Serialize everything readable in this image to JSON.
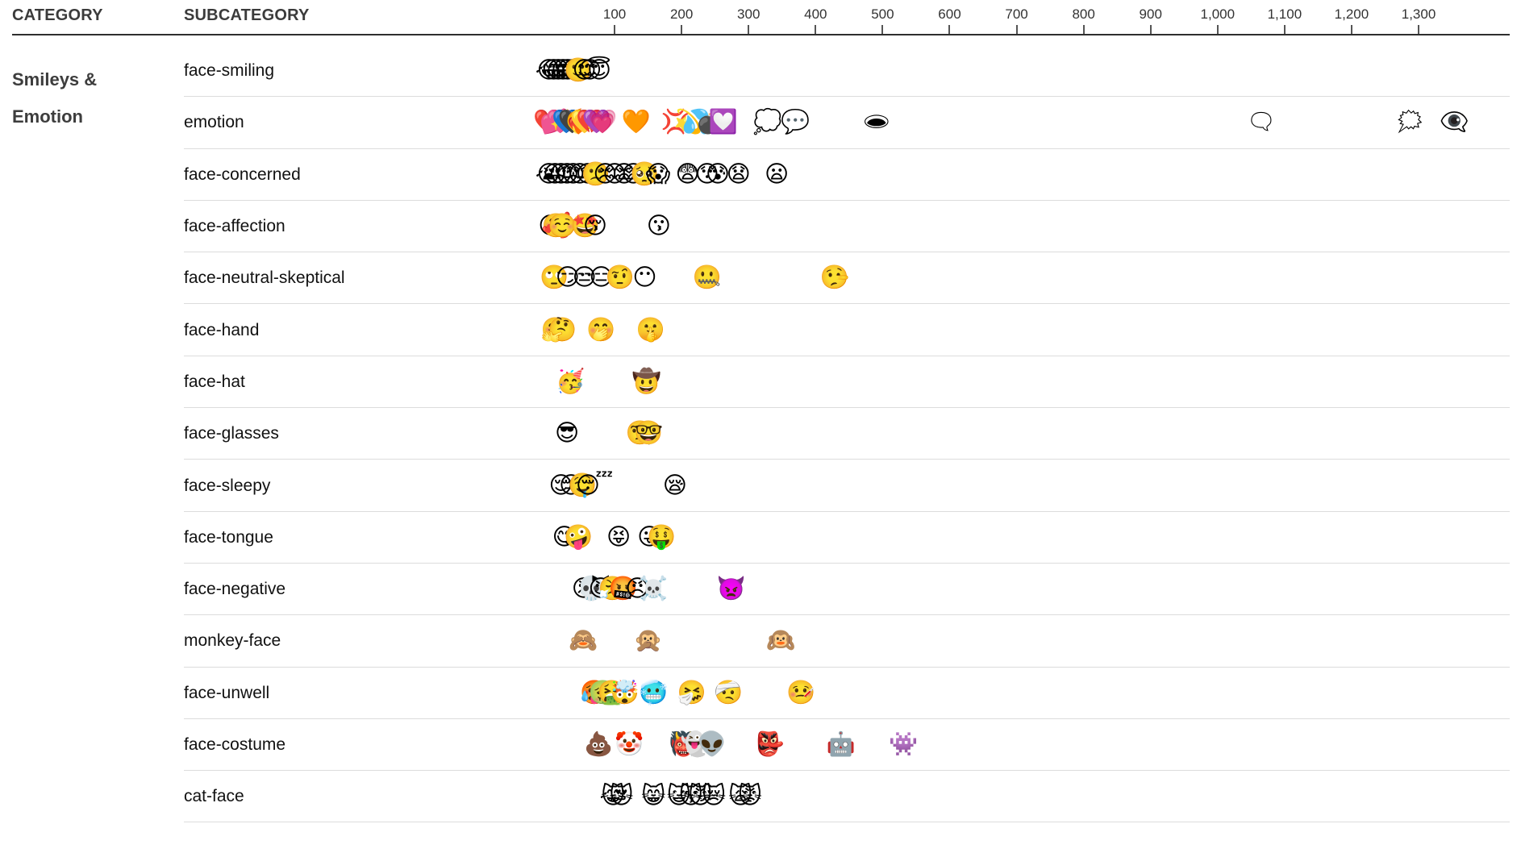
{
  "header": {
    "category_label": "CATEGORY",
    "subcategory_label": "SUBCATEGORY"
  },
  "category": {
    "line1": "Smileys &",
    "line2": "Emotion"
  },
  "colors": {
    "axis_line": "#2e2e2e",
    "row_separator": "#dcdcdc",
    "header_text": "#3b3b3b",
    "label_text": "#111111",
    "background": "#ffffff"
  },
  "chart_data": {
    "type": "scatter",
    "title": "",
    "xlabel": "",
    "ylabel": "",
    "x_axis": {
      "min": 0,
      "max": 1400,
      "ticks": [
        100,
        200,
        300,
        400,
        500,
        600,
        700,
        800,
        900,
        1000,
        1100,
        1200,
        1300
      ],
      "tick_labels": [
        "100",
        "200",
        "300",
        "400",
        "500",
        "600",
        "700",
        "800",
        "900",
        "1,000",
        "1,100",
        "1,200",
        "1,300"
      ],
      "grid": false
    },
    "category": "Smileys & Emotion",
    "rows": [
      {
        "subcategory": "face-smiling",
        "points": [
          {
            "emoji": "😂",
            "value": 2
          },
          {
            "emoji": "😃",
            "value": 9
          },
          {
            "emoji": "😄",
            "value": 16
          },
          {
            "emoji": "😁",
            "value": 23
          },
          {
            "emoji": "😆",
            "value": 30
          },
          {
            "emoji": "😅",
            "value": 38
          },
          {
            "emoji": "🙂",
            "value": 46
          },
          {
            "emoji": "😊",
            "value": 55
          },
          {
            "emoji": "😉",
            "value": 63
          },
          {
            "emoji": "😇",
            "value": 77
          }
        ]
      },
      {
        "subcategory": "emotion",
        "points": [
          {
            "emoji": "❤️",
            "value": 0
          },
          {
            "emoji": "💕",
            "value": 10
          },
          {
            "emoji": "💖",
            "value": 19
          },
          {
            "emoji": "💙",
            "value": 28
          },
          {
            "emoji": "🖤",
            "value": 37
          },
          {
            "emoji": "❤️‍🔥",
            "value": 46
          },
          {
            "emoji": "💛",
            "value": 55
          },
          {
            "emoji": "💔",
            "value": 64
          },
          {
            "emoji": "💜",
            "value": 73
          },
          {
            "emoji": "💗",
            "value": 82
          },
          {
            "emoji": "🧡",
            "value": 132
          },
          {
            "emoji": "💢",
            "value": 191
          },
          {
            "emoji": "💫",
            "value": 210
          },
          {
            "emoji": "💦",
            "value": 222
          },
          {
            "emoji": "💣",
            "value": 242
          },
          {
            "emoji": "💟",
            "value": 262
          },
          {
            "emoji": "💭",
            "value": 328
          },
          {
            "emoji": "💬",
            "value": 370
          },
          {
            "emoji": "🕳",
            "value": 491
          },
          {
            "emoji": "🗨",
            "value": 1065
          },
          {
            "emoji": "🗯",
            "value": 1287
          },
          {
            "emoji": "👁️‍🗨️",
            "value": 1353
          }
        ]
      },
      {
        "subcategory": "face-concerned",
        "points": [
          {
            "emoji": "😭",
            "value": 2
          },
          {
            "emoji": "😢",
            "value": 11
          },
          {
            "emoji": "😥",
            "value": 20
          },
          {
            "emoji": "😓",
            "value": 29
          },
          {
            "emoji": "😞",
            "value": 38
          },
          {
            "emoji": "😔",
            "value": 48
          },
          {
            "emoji": "😟",
            "value": 60
          },
          {
            "emoji": "🙁",
            "value": 72
          },
          {
            "emoji": "😣",
            "value": 86
          },
          {
            "emoji": "😖",
            "value": 100
          },
          {
            "emoji": "😫",
            "value": 114
          },
          {
            "emoji": "😩",
            "value": 128
          },
          {
            "emoji": "🥺",
            "value": 145
          },
          {
            "emoji": "😱",
            "value": 165
          },
          {
            "emoji": "😨",
            "value": 209
          },
          {
            "emoji": "😯",
            "value": 238
          },
          {
            "emoji": "😰",
            "value": 254
          },
          {
            "emoji": "😧",
            "value": 285
          },
          {
            "emoji": "😦",
            "value": 342
          }
        ]
      },
      {
        "subcategory": "face-affection",
        "points": [
          {
            "emoji": "😘",
            "value": 4
          },
          {
            "emoji": "🥰",
            "value": 13
          },
          {
            "emoji": "☺️",
            "value": 22
          },
          {
            "emoji": "🤩",
            "value": 56
          },
          {
            "emoji": "😚",
            "value": 71
          },
          {
            "emoji": "😗",
            "value": 166
          }
        ]
      },
      {
        "subcategory": "face-neutral-skeptical",
        "points": [
          {
            "emoji": "🙄",
            "value": 10
          },
          {
            "emoji": "😏",
            "value": 30
          },
          {
            "emoji": "😒",
            "value": 55
          },
          {
            "emoji": "😑",
            "value": 80
          },
          {
            "emoji": "🤨",
            "value": 108
          },
          {
            "emoji": "😶",
            "value": 145
          },
          {
            "emoji": "🤐",
            "value": 238
          },
          {
            "emoji": "🤥",
            "value": 428
          }
        ]
      },
      {
        "subcategory": "face-hand",
        "points": [
          {
            "emoji": "🤗",
            "value": 12
          },
          {
            "emoji": "🤔",
            "value": 22
          },
          {
            "emoji": "🤭",
            "value": 80
          },
          {
            "emoji": "🤫",
            "value": 154
          }
        ]
      },
      {
        "subcategory": "face-hat",
        "points": [
          {
            "emoji": "🥳",
            "value": 34
          },
          {
            "emoji": "🤠",
            "value": 148
          }
        ]
      },
      {
        "subcategory": "face-glasses",
        "points": [
          {
            "emoji": "😎",
            "value": 29
          },
          {
            "emoji": "🧐",
            "value": 138
          },
          {
            "emoji": "🤓",
            "value": 151
          }
        ]
      },
      {
        "subcategory": "face-sleepy",
        "points": [
          {
            "emoji": "😌",
            "value": 20
          },
          {
            "emoji": "😔",
            "value": 35
          },
          {
            "emoji": "🤤",
            "value": 52
          },
          {
            "emoji": "😴",
            "value": 70
          },
          {
            "emoji": "😪",
            "value": 190
          }
        ]
      },
      {
        "subcategory": "face-tongue",
        "points": [
          {
            "emoji": "😋",
            "value": 25
          },
          {
            "emoji": "🤪",
            "value": 46
          },
          {
            "emoji": "😝",
            "value": 106
          },
          {
            "emoji": "😜",
            "value": 152
          },
          {
            "emoji": "🤑",
            "value": 170
          }
        ]
      },
      {
        "subcategory": "face-negative",
        "points": [
          {
            "emoji": "😡",
            "value": 54
          },
          {
            "emoji": "💀",
            "value": 65
          },
          {
            "emoji": "😈",
            "value": 79
          },
          {
            "emoji": "😤",
            "value": 97
          },
          {
            "emoji": "🤬",
            "value": 113
          },
          {
            "emoji": "😠",
            "value": 134
          },
          {
            "emoji": "☠️",
            "value": 158
          },
          {
            "emoji": "👿",
            "value": 274
          }
        ]
      },
      {
        "subcategory": "monkey-face",
        "points": [
          {
            "emoji": "🙈",
            "value": 53
          },
          {
            "emoji": "🙊",
            "value": 150
          },
          {
            "emoji": "🙉",
            "value": 348
          }
        ]
      },
      {
        "subcategory": "face-unwell",
        "points": [
          {
            "emoji": "🥵",
            "value": 70
          },
          {
            "emoji": "🤢",
            "value": 83
          },
          {
            "emoji": "🤮",
            "value": 96
          },
          {
            "emoji": "🤯",
            "value": 115
          },
          {
            "emoji": "🥶",
            "value": 158
          },
          {
            "emoji": "🤧",
            "value": 215
          },
          {
            "emoji": "🤕",
            "value": 270
          },
          {
            "emoji": "🤒",
            "value": 378
          }
        ]
      },
      {
        "subcategory": "face-costume",
        "points": [
          {
            "emoji": "💩",
            "value": 76
          },
          {
            "emoji": "🤡",
            "value": 122
          },
          {
            "emoji": "👹",
            "value": 203
          },
          {
            "emoji": "👻",
            "value": 220
          },
          {
            "emoji": "👽",
            "value": 245
          },
          {
            "emoji": "👺",
            "value": 332
          },
          {
            "emoji": "🤖",
            "value": 438
          },
          {
            "emoji": "👾",
            "value": 531
          }
        ]
      },
      {
        "subcategory": "cat-face",
        "points": [
          {
            "emoji": "😹",
            "value": 98
          },
          {
            "emoji": "😻",
            "value": 110
          },
          {
            "emoji": "😸",
            "value": 158
          },
          {
            "emoji": "😺",
            "value": 196
          },
          {
            "emoji": "😽",
            "value": 214
          },
          {
            "emoji": "😼",
            "value": 228
          },
          {
            "emoji": "😿",
            "value": 248
          },
          {
            "emoji": "🙀",
            "value": 288
          },
          {
            "emoji": "😾",
            "value": 302
          }
        ]
      }
    ]
  }
}
